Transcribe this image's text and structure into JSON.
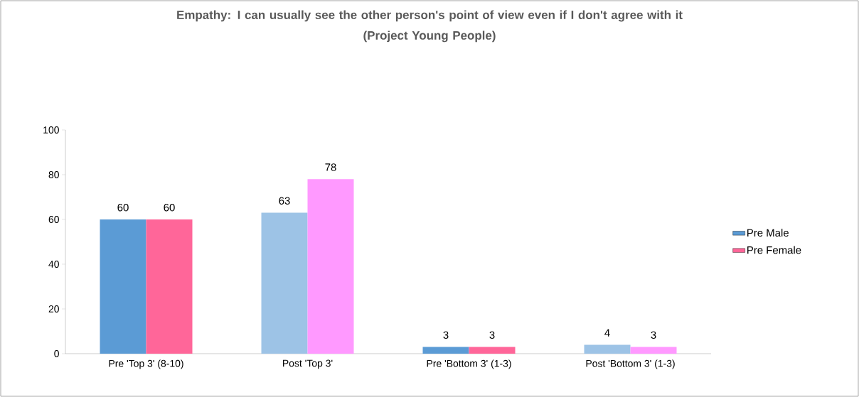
{
  "chart_data": {
    "type": "bar",
    "title": "Empathy: I can usually see the other person's point of view even if I don't agree with it",
    "subtitle": "(Project Young People)",
    "categories": [
      "Pre 'Top 3' (8-10)",
      "Post 'Top 3'",
      "Pre 'Bottom 3' (1-3)",
      "Post 'Bottom 3' (1-3)"
    ],
    "series": [
      {
        "name": "Pre Male",
        "color": "#5b9bd5",
        "colors": [
          "#5b9bd5",
          "#9dc3e6",
          "#5b9bd5",
          "#9dc3e6"
        ],
        "values": [
          60,
          63,
          3,
          4
        ]
      },
      {
        "name": "Pre Female",
        "color": "#ff6699",
        "colors": [
          "#ff6699",
          "#ff99ff",
          "#ff6699",
          "#ff99ff"
        ],
        "values": [
          60,
          78,
          3,
          3
        ]
      }
    ],
    "ylim": [
      0,
      100
    ],
    "yticks": [
      0,
      20,
      40,
      60,
      80,
      100
    ],
    "data_labels": true,
    "legend": "right"
  }
}
